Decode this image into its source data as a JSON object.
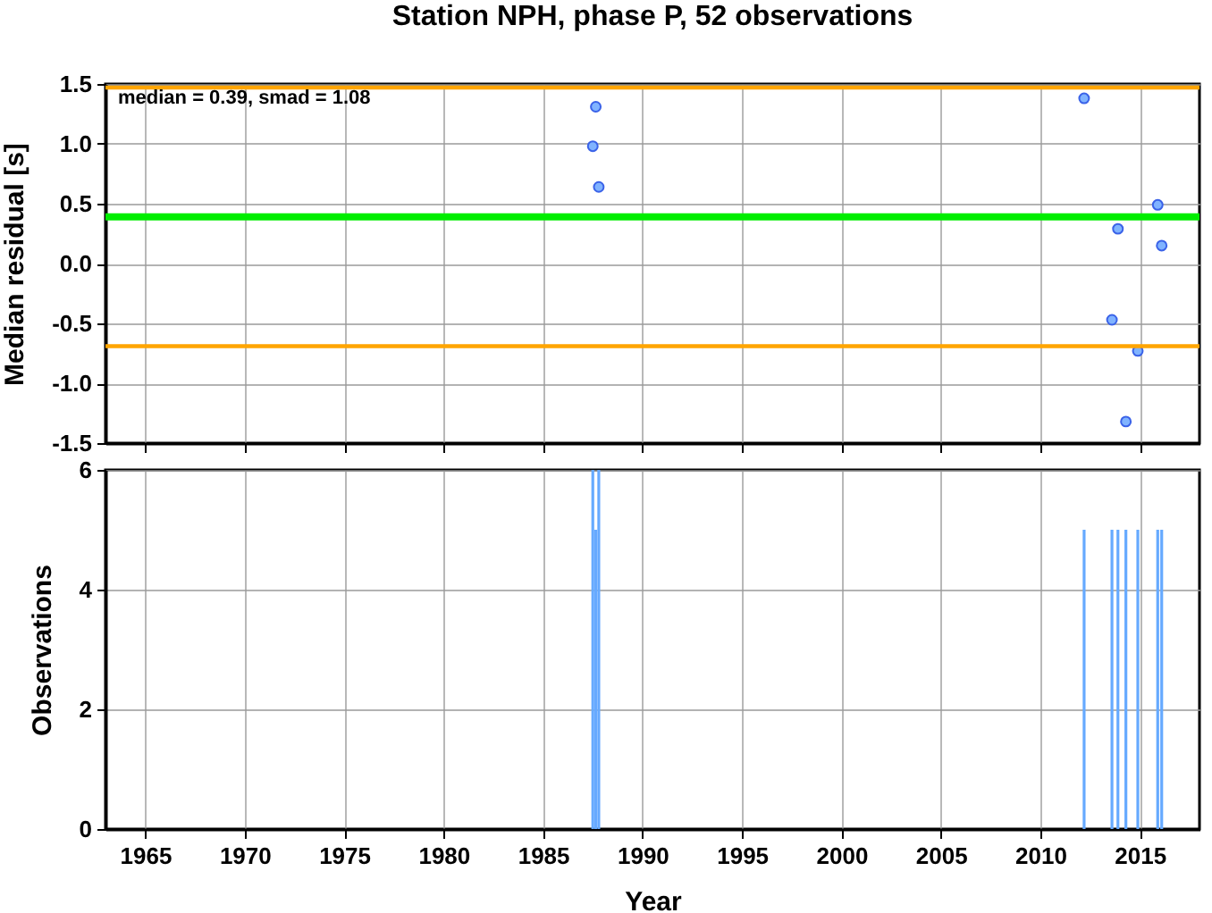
{
  "chart_data": [
    {
      "type": "scatter",
      "title": "Station NPH, phase P, 52 observations",
      "ylabel": "Median residual [s]",
      "annotations": [
        "median = 0.39, smad = 1.08"
      ],
      "x": [
        1987.5,
        1987.65,
        1987.8,
        2012.2,
        2013.6,
        2013.9,
        2014.3,
        2014.9,
        2015.9,
        2016.1
      ],
      "series": [
        {
          "color": "#80b3ff",
          "values": [
            0.98,
            1.31,
            0.64,
            1.38,
            -0.47,
            0.29,
            -1.32,
            -0.73,
            0.49,
            0.15
          ]
        }
      ],
      "xlim": [
        1963,
        2018
      ],
      "xticks": [
        1965,
        1970,
        1975,
        1980,
        1985,
        1990,
        1995,
        2000,
        2005,
        2010,
        2015
      ],
      "ylim": [
        -1.5,
        1.5
      ],
      "yticks": [
        -1.5,
        {
          "value": -1,
          "label": "-1.0"
        },
        -0.5,
        {
          "value": 0,
          "label": "0.0"
        },
        0.5,
        {
          "value": 1,
          "label": "1.0"
        },
        1.5
      ],
      "tick_labels": "y",
      "grid": true,
      "marker": "circle",
      "ref_lines": [
        {
          "axis": "y",
          "value": 0.39,
          "color": "#00ee00"
        },
        {
          "axis": "y",
          "value": 1.47,
          "color": "#ffa500"
        },
        {
          "axis": "y",
          "value": -0.69,
          "color": "#ffa500"
        }
      ]
    },
    {
      "type": "bar",
      "xlabel": "Year",
      "ylabel": "Observations",
      "x": [
        1987.5,
        1987.65,
        1987.8,
        2012.2,
        2013.6,
        2013.9,
        2014.3,
        2014.9,
        2015.9,
        2016.1
      ],
      "values": [
        6,
        5,
        6,
        5,
        5,
        5,
        5,
        5,
        5,
        5
      ],
      "color": "#66aaff",
      "xlim": [
        1963,
        2018
      ],
      "xticks": [
        1965,
        1970,
        1975,
        1980,
        1985,
        1990,
        1995,
        2000,
        2005,
        2010,
        2015
      ],
      "ylim": [
        0,
        6
      ],
      "yticks": [
        0,
        2,
        4,
        6
      ],
      "grid": true
    }
  ]
}
